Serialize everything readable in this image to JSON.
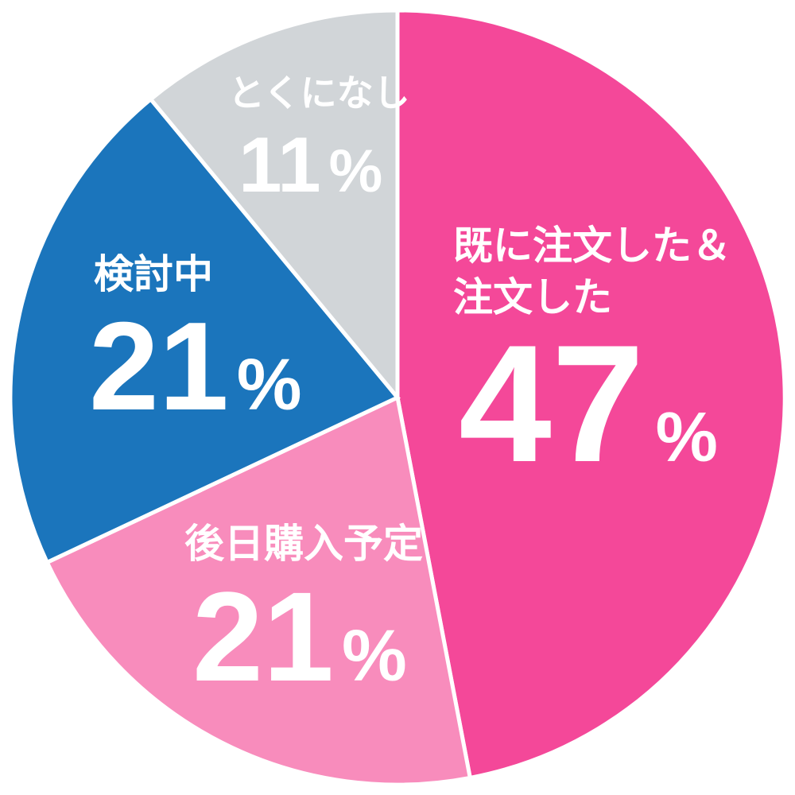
{
  "chart_data": {
    "type": "pie",
    "start_angle_deg": 0,
    "direction": "clockwise",
    "separator_color": "#FFFFFF",
    "background_color": "#FFFFFF",
    "label_text_color": "#FFFFFF",
    "legend_position": "none",
    "slices": [
      {
        "key": "already-ordered",
        "label": "既に注文した＆注文した",
        "label_lines": [
          "既に注文した＆",
          "注文した"
        ],
        "value": 47,
        "unit": "%",
        "color": "#F44899"
      },
      {
        "key": "purchase-later",
        "label": "後日購入予定",
        "label_lines": [
          "後日購入予定"
        ],
        "value": 21,
        "unit": "%",
        "color": "#F88CBC"
      },
      {
        "key": "considering",
        "label": "検討中",
        "label_lines": [
          "検討中"
        ],
        "value": 21,
        "unit": "%",
        "color": "#1B75BC"
      },
      {
        "key": "none-in-particular",
        "label": "とくになし",
        "label_lines": [
          "とくになし"
        ],
        "value": 11,
        "unit": "%",
        "color": "#D1D5D8"
      }
    ]
  }
}
